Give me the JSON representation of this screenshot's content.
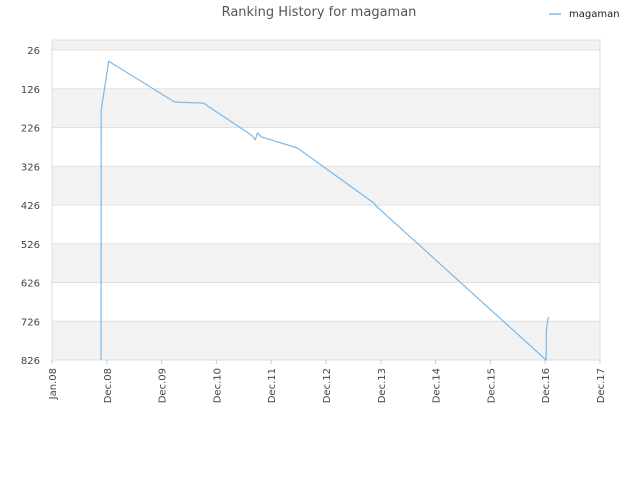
{
  "chart_data": {
    "type": "line",
    "title": "Ranking History for magaman",
    "xlabel": "",
    "ylabel": "",
    "x_ticks": [
      "Jan.08",
      "Dec.08",
      "Dec.09",
      "Dec.10",
      "Dec.11",
      "Dec.12",
      "Dec.13",
      "Dec.14",
      "Dec.15",
      "Dec.16",
      "Dec.17"
    ],
    "y_ticks": [
      26,
      126,
      226,
      326,
      426,
      526,
      626,
      726,
      826
    ],
    "ylim": [
      826,
      26
    ],
    "y_inverted": true,
    "grid": true,
    "legend_position": "top-right",
    "series": [
      {
        "name": "magaman",
        "color": "#7cb9e8",
        "x": [
          "2008-11-20",
          "2008-11-21",
          "2008-11-22",
          "2008-11-23",
          "2009-01-10",
          "2010-03-20",
          "2010-05-01",
          "2010-10-01",
          "2010-11-01",
          "2011-06-20",
          "2011-08-15",
          "2011-09-05",
          "2011-09-20",
          "2011-10-15",
          "2012-06-10",
          "2013-11-01",
          "2013-11-05",
          "2016-12-10",
          "2016-12-12",
          "2016-12-20",
          "2016-12-28"
        ],
        "y": [
          826,
          180,
          178,
          176,
          55,
          160,
          161,
          163,
          172,
          232,
          247,
          258,
          240,
          250,
          279,
          422,
          426,
          826,
          750,
          722,
          715
        ]
      }
    ]
  }
}
